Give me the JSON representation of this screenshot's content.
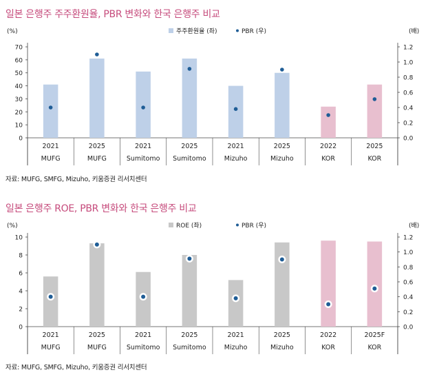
{
  "charts": [
    {
      "title": "일본 은행주 주주환원율, PBR 변화와 한국 은행주 비교",
      "source": "자료: MUFG, SMFG, Mizuho, 키움증권 리서치센터",
      "chart_data": {
        "type": "bar",
        "title": "일본 은행주 주주환원율, PBR 변화와 한국 은행주 비교",
        "y_left_unit": "(%)",
        "y_right_unit": "(배)",
        "ylim_left": [
          0,
          70
        ],
        "yticks_left": [
          "0",
          "10",
          "20",
          "30",
          "40",
          "50",
          "60",
          "70"
        ],
        "ylim_right": [
          0,
          1.2
        ],
        "yticks_right": [
          "0.0",
          "0.2",
          "0.4",
          "0.6",
          "0.8",
          "1.0",
          "1.2"
        ],
        "categories_top": [
          "2021",
          "2025",
          "2021",
          "2025",
          "2021",
          "2025",
          "2022",
          "2025"
        ],
        "categories_bottom": [
          "MUFG",
          "MUFG",
          "Sumitomo",
          "Sumitomo",
          "Mizuho",
          "Mizuho",
          "KOR",
          "KOR"
        ],
        "series": [
          {
            "name": "주주환원율 (좌)",
            "type": "bar",
            "axis": "left",
            "values": [
              41,
              61,
              51,
              61,
              40,
              50,
              24,
              41
            ]
          },
          {
            "name": "PBR (우)",
            "type": "scatter",
            "axis": "right",
            "values": [
              0.4,
              1.1,
              0.4,
              0.91,
              0.38,
              0.9,
              0.3,
              0.51
            ]
          }
        ],
        "legend_position": "top-center",
        "grid": false
      }
    },
    {
      "title": "일본 은행주 ROE, PBR 변화와 한국 은행주 비교",
      "source": "자료: MUFG, SMFG, Mizuho, 키움증권 리서치센터",
      "chart_data": {
        "type": "bar",
        "title": "일본 은행주 ROE, PBR 변화와 한국 은행주 비교",
        "y_left_unit": "(%)",
        "y_right_unit": "(배)",
        "ylim_left": [
          0,
          10
        ],
        "yticks_left": [
          "0",
          "2",
          "4",
          "6",
          "8",
          "10"
        ],
        "ylim_right": [
          0,
          1.2
        ],
        "yticks_right": [
          "0.0",
          "0.2",
          "0.4",
          "0.6",
          "0.8",
          "1.0",
          "1.2"
        ],
        "categories_top": [
          "2021",
          "2025",
          "2021",
          "2025",
          "2021",
          "2025",
          "2022",
          "2025F"
        ],
        "categories_bottom": [
          "MUFG",
          "MUFG",
          "Sumitomo",
          "Sumitomo",
          "Mizuho",
          "Mizuho",
          "KOR",
          "KOR"
        ],
        "series": [
          {
            "name": "ROE (좌)",
            "type": "bar",
            "axis": "left",
            "values": [
              5.6,
              9.3,
              6.1,
              8.0,
              5.2,
              9.4,
              9.6,
              9.5
            ]
          },
          {
            "name": "PBR (우)",
            "type": "scatter",
            "axis": "right",
            "values": [
              0.4,
              1.1,
              0.4,
              0.91,
              0.38,
              0.9,
              0.3,
              0.51
            ]
          }
        ],
        "legend_position": "top-center",
        "grid": false
      }
    }
  ],
  "colors": {
    "title": "#c64b7c",
    "bar_jp_1": "#bed0e8",
    "bar_jp_2": "#c8c8c8",
    "bar_kr": "#e8bfcf",
    "dot": "#1f5d96",
    "axis": "#444444"
  }
}
